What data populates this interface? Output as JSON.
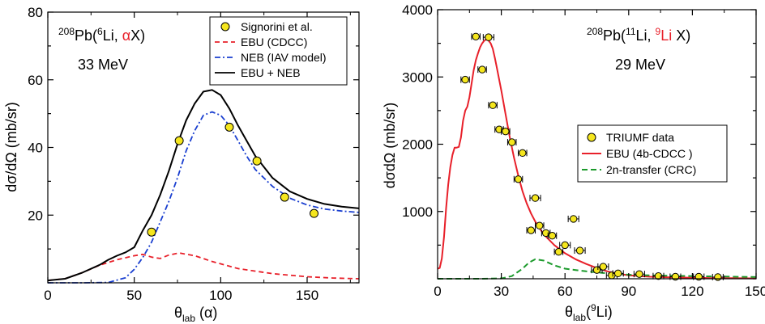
{
  "colors": {
    "data_fill": "#f5e61e",
    "red": "#e8202a",
    "blue": "#1a3fd0",
    "black": "#000000",
    "green": "#1b9a2b"
  },
  "chart_data": [
    {
      "type": "line",
      "annotation": {
        "reaction_pre": "Pb(",
        "reaction_mass": "208",
        "proj_mass": "6",
        "reaction_mid": "Li, ",
        "reaction_highlight": "α",
        "reaction_post": "X)",
        "energy": "33 MeV"
      },
      "xlabel": "θ",
      "xlabel_sub": "lab",
      "xlabel_post": " (α)",
      "ylabel": "dσ/dΩ (mb/sr)",
      "xlim": [
        0,
        180
      ],
      "ylim": [
        0,
        80
      ],
      "xticks": [
        0,
        50,
        100,
        150
      ],
      "yticks": [
        20,
        40,
        60,
        80
      ],
      "legend_position": "top-right",
      "legend": [
        "Signorini et al.",
        "EBU (CDCC)",
        "NEB (IAV model)",
        "EBU + NEB"
      ],
      "series": [
        {
          "name": "Signorini et al.",
          "style": "points",
          "x": [
            60,
            76,
            105,
            121,
            137,
            154
          ],
          "y": [
            15,
            42,
            46,
            36,
            25.3,
            20.5
          ]
        },
        {
          "name": "EBU (CDCC)",
          "style": "dashed",
          "x": [
            0,
            10,
            20,
            30,
            40,
            50,
            55,
            60,
            65,
            70,
            76,
            85,
            95,
            110,
            130,
            150,
            165,
            180
          ],
          "y": [
            0.7,
            1.2,
            3.0,
            5.2,
            6.8,
            8.0,
            8.4,
            7.6,
            7.2,
            8.2,
            8.8,
            8.0,
            6.3,
            4.2,
            2.7,
            1.8,
            1.4,
            1.2
          ]
        },
        {
          "name": "NEB (IAV model)",
          "style": "dashdot",
          "x": [
            0,
            20,
            35,
            45,
            50,
            55,
            60,
            65,
            70,
            75,
            80,
            85,
            90,
            95,
            100,
            105,
            110,
            115,
            120,
            130,
            140,
            150,
            160,
            170,
            180
          ],
          "y": [
            0,
            0,
            0.1,
            1.5,
            4,
            7.5,
            12,
            18,
            24,
            31,
            39,
            45,
            49.5,
            50.5,
            49.5,
            46.5,
            42,
            37.5,
            33.5,
            28.5,
            25,
            23,
            21.8,
            21.2,
            20.8
          ]
        },
        {
          "name": "EBU + NEB",
          "style": "solid",
          "x": [
            0,
            10,
            20,
            30,
            35,
            40,
            45,
            50,
            55,
            60,
            65,
            70,
            75,
            80,
            85,
            90,
            95,
            100,
            105,
            110,
            115,
            120,
            130,
            140,
            150,
            160,
            170,
            180
          ],
          "y": [
            0.7,
            1.2,
            3.0,
            5.3,
            6.8,
            8.0,
            9.0,
            10.5,
            15.5,
            20.0,
            26.0,
            33.0,
            41.0,
            48.0,
            53.0,
            56.5,
            57.0,
            55.5,
            51.5,
            46.5,
            42.0,
            37.5,
            31.0,
            27.0,
            24.8,
            23.3,
            22.5,
            22.0
          ]
        }
      ]
    },
    {
      "type": "line",
      "annotation": {
        "reaction_pre": "Pb(",
        "reaction_mass": "208",
        "proj_mass": "11",
        "reaction_mid": "Li, ",
        "ejectile_mass": "9",
        "reaction_highlight": "Li",
        "reaction_post": " X)",
        "energy": "29 MeV"
      },
      "xlabel": "θ",
      "xlabel_sub": "lab",
      "xlabel_post_pre": "(",
      "xlabel_post_mass": "9",
      "xlabel_post": "Li)",
      "ylabel": "dσdΩ (mb/sr)",
      "xlim": [
        0,
        150
      ],
      "ylim": [
        0,
        4000
      ],
      "xticks": [
        0,
        30,
        60,
        90,
        120,
        150
      ],
      "yticks": [
        1000,
        2000,
        3000,
        4000
      ],
      "legend_position": "center-right",
      "legend": [
        "TRIUMF data",
        "EBU (4b-CDCC )",
        "2n-transfer (CRC)"
      ],
      "series": [
        {
          "name": "TRIUMF data",
          "style": "points_xerr",
          "x": [
            13,
            18,
            21,
            24,
            26,
            29,
            32,
            35,
            38,
            40,
            44,
            46,
            48,
            51,
            54,
            57,
            60,
            64,
            67,
            75,
            78,
            82,
            85,
            95,
            104,
            112,
            123,
            132
          ],
          "y": [
            2960,
            3600,
            3110,
            3590,
            2580,
            2220,
            2190,
            2030,
            1480,
            1870,
            720,
            1200,
            790,
            680,
            640,
            400,
            500,
            890,
            420,
            130,
            180,
            50,
            80,
            70,
            40,
            30,
            30,
            25
          ],
          "xerr": [
            2,
            2,
            2,
            2.5,
            2,
            2,
            2,
            2,
            2,
            2,
            2,
            2.5,
            2,
            2,
            2,
            2,
            2.5,
            2.5,
            2.5,
            2.5,
            2.5,
            2.5,
            2.5,
            2.5,
            2.5,
            2.5,
            2.5,
            2.5
          ]
        },
        {
          "name": "EBU (4b-CDCC )",
          "style": "solid",
          "x": [
            0,
            1,
            2,
            3,
            4,
            5,
            6,
            7,
            8,
            9,
            10,
            11,
            12,
            13,
            14,
            15,
            16,
            17,
            18,
            19,
            20,
            21,
            22,
            23,
            24,
            25,
            26,
            27,
            28,
            30,
            32,
            34,
            36,
            38,
            40,
            42,
            44,
            46,
            48,
            50,
            55,
            60,
            65,
            70,
            75,
            80,
            85,
            90,
            100,
            110,
            120,
            130,
            140,
            150
          ],
          "y": [
            150,
            160,
            300,
            620,
            1050,
            1400,
            1660,
            1840,
            1950,
            1950,
            1960,
            2100,
            2350,
            2500,
            2560,
            2700,
            2900,
            3100,
            3250,
            3350,
            3440,
            3500,
            3540,
            3560,
            3540,
            3500,
            3420,
            3280,
            3120,
            2800,
            2450,
            2100,
            1800,
            1530,
            1300,
            1120,
            970,
            850,
            750,
            660,
            500,
            380,
            290,
            220,
            160,
            110,
            75,
            50,
            30,
            20,
            15,
            10,
            8,
            5
          ]
        },
        {
          "name": "2n-transfer (CRC)",
          "style": "dashed",
          "x": [
            0,
            20,
            30,
            35,
            40,
            43,
            46,
            50,
            55,
            60,
            65,
            70,
            80,
            90,
            100,
            110,
            120,
            130,
            140,
            150
          ],
          "y": [
            0,
            0,
            5,
            40,
            150,
            240,
            290,
            270,
            200,
            150,
            130,
            110,
            80,
            60,
            50,
            45,
            40,
            35,
            30,
            25
          ]
        }
      ]
    }
  ]
}
